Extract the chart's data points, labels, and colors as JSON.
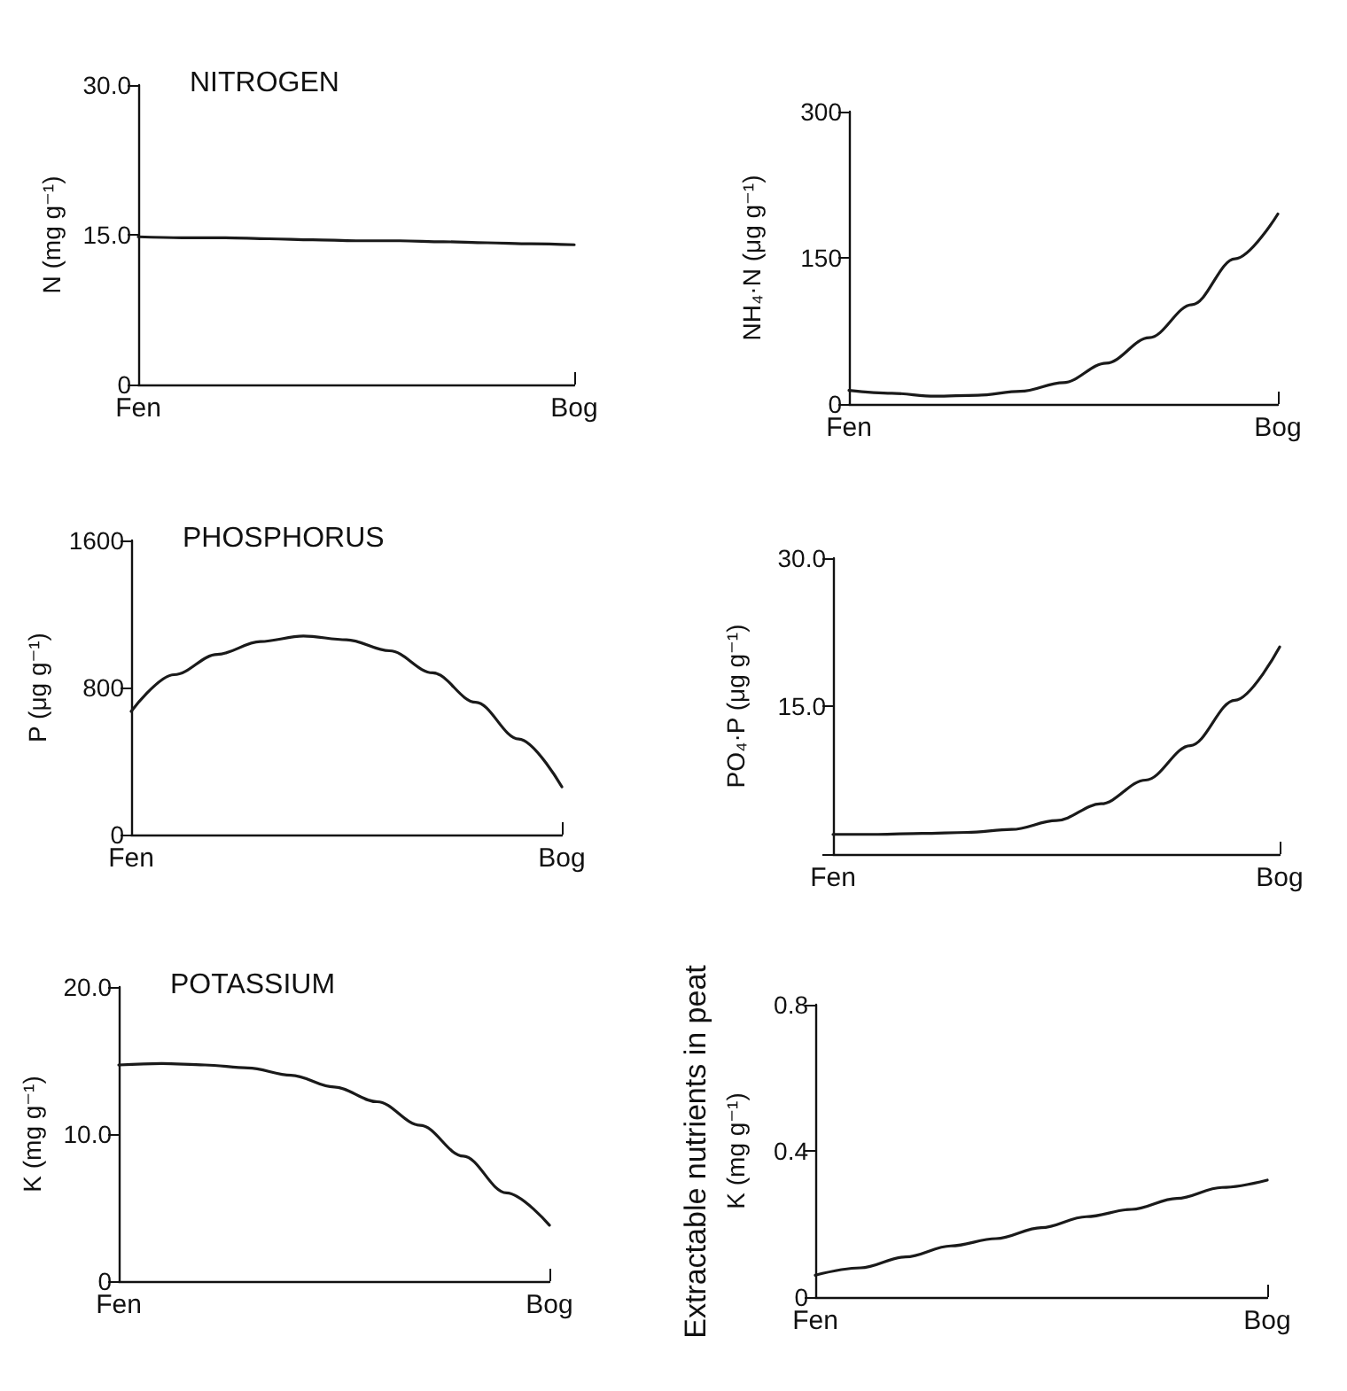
{
  "chart_data": [
    {
      "type": "line",
      "title": "NITROGEN",
      "ylabel": "N (mg g⁻¹)",
      "categories": [
        "Fen",
        null,
        null,
        null,
        null,
        null,
        null,
        null,
        null,
        null,
        "Bog"
      ],
      "ylim": [
        0,
        30
      ],
      "yticks": [
        0,
        {
          "value": 15,
          "label": "15.0"
        },
        {
          "value": 30,
          "label": "30.0"
        }
      ],
      "series": [
        {
          "color": "#1a1a1a",
          "values": [
            14.8,
            14.7,
            14.7,
            14.6,
            14.5,
            14.4,
            14.4,
            14.3,
            14.2,
            14.1,
            14.0
          ]
        }
      ]
    },
    {
      "type": "line",
      "ylabel": "NH₄·N (μg g⁻¹)",
      "categories": [
        "Fen",
        null,
        null,
        null,
        null,
        null,
        null,
        null,
        null,
        null,
        "Bog"
      ],
      "ylim": [
        0,
        300
      ],
      "yticks": [
        0,
        150,
        300
      ],
      "series": [
        {
          "color": "#1a1a1a",
          "values": [
            14,
            11,
            8,
            9,
            13,
            22,
            42,
            68,
            102,
            149,
            195
          ]
        }
      ]
    },
    {
      "type": "line",
      "title": "PHOSPHORUS",
      "ylabel": "P (μg g⁻¹)",
      "categories": [
        "Fen",
        null,
        null,
        null,
        null,
        null,
        null,
        null,
        null,
        null,
        "Bog"
      ],
      "ylim": [
        0,
        1600
      ],
      "yticks": [
        0,
        800,
        1600
      ],
      "series": [
        {
          "color": "#1a1a1a",
          "values": [
            670,
            870,
            980,
            1050,
            1080,
            1060,
            1000,
            880,
            720,
            520,
            260
          ]
        }
      ]
    },
    {
      "type": "line",
      "ylabel": "PO₄·P (μg g⁻¹)",
      "categories": [
        "Fen",
        null,
        null,
        null,
        null,
        null,
        null,
        null,
        null,
        null,
        "Bog"
      ],
      "ylim": [
        0,
        30
      ],
      "yticks": [
        {
          "value": 0,
          "label": null
        },
        {
          "value": 15,
          "label": "15.0"
        },
        {
          "value": 30,
          "label": "30.0"
        }
      ],
      "series": [
        {
          "color": "#1a1a1a",
          "values": [
            2.0,
            2.0,
            2.1,
            2.2,
            2.5,
            3.4,
            5.1,
            7.5,
            11.0,
            15.6,
            21.0
          ]
        }
      ]
    },
    {
      "type": "line",
      "title": "POTASSIUM",
      "ylabel": "K (mg g⁻¹)",
      "categories": [
        "Fen",
        null,
        null,
        null,
        null,
        null,
        null,
        null,
        null,
        null,
        "Bog"
      ],
      "ylim": [
        0,
        20
      ],
      "yticks": [
        0,
        {
          "value": 10,
          "label": "10.0"
        },
        {
          "value": 20,
          "label": "20.0"
        }
      ],
      "series": [
        {
          "color": "#1a1a1a",
          "values": [
            14.7,
            14.8,
            14.7,
            14.5,
            14.0,
            13.2,
            12.2,
            10.6,
            8.5,
            6.0,
            3.8
          ]
        }
      ]
    },
    {
      "type": "line",
      "ylabel": "K (mg g⁻¹)",
      "annotations": [
        "Extractable nutrients in peat"
      ],
      "categories": [
        "Fen",
        null,
        null,
        null,
        null,
        null,
        null,
        null,
        null,
        null,
        "Bog"
      ],
      "ylim": [
        0,
        0.8
      ],
      "yticks": [
        0,
        0.4,
        0.8
      ],
      "series": [
        {
          "color": "#1a1a1a",
          "values": [
            0.06,
            0.08,
            0.11,
            0.14,
            0.16,
            0.19,
            0.22,
            0.24,
            0.27,
            0.3,
            0.32
          ]
        }
      ]
    }
  ]
}
